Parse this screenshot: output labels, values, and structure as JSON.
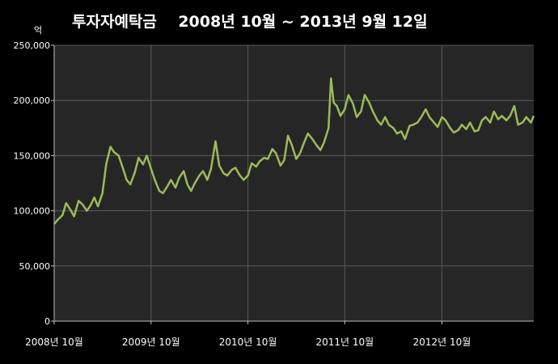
{
  "colors": {
    "background": "#000000",
    "plot_area": "#262626",
    "gridline": "#5a5a5a",
    "axis": "#bfbfbf",
    "line": "#9bbb59",
    "text": "#ffffff"
  },
  "chart_data": {
    "type": "line",
    "title": "투자자예탁금    2008년 10월 ~ 2013년 9월 12일",
    "unit_label": "억",
    "xlabel": "",
    "ylabel": "",
    "ylim": [
      0,
      250000
    ],
    "y_ticks": [
      0,
      50000,
      100000,
      150000,
      200000,
      250000
    ],
    "y_tick_labels": [
      "0",
      "50,000",
      "100,000",
      "150,000",
      "200,000",
      "250,000"
    ],
    "x_range": [
      "2008-10-01",
      "2013-09-12"
    ],
    "x_ticks": [
      "2008-10-01",
      "2009-10-01",
      "2010-10-01",
      "2011-10-01",
      "2012-10-01"
    ],
    "x_tick_labels": [
      "2008년 10월",
      "2009년 10월",
      "2010년 10월",
      "2011년 10월",
      "2012년 10월"
    ],
    "grid": true,
    "legend": "none",
    "series": [
      {
        "x": [
          "2008-10-01",
          "2008-10-15",
          "2008-11-01",
          "2008-11-15",
          "2008-12-01",
          "2008-12-15",
          "2009-01-01",
          "2009-01-15",
          "2009-02-01",
          "2009-02-15",
          "2009-03-01",
          "2009-03-15",
          "2009-04-01",
          "2009-04-15",
          "2009-05-01",
          "2009-05-15",
          "2009-06-01",
          "2009-06-15",
          "2009-07-01",
          "2009-07-15",
          "2009-08-01",
          "2009-08-15",
          "2009-09-01",
          "2009-09-15",
          "2009-10-01",
          "2009-10-15",
          "2009-11-01",
          "2009-11-15",
          "2009-12-01",
          "2009-12-15",
          "2010-01-01",
          "2010-01-15",
          "2010-02-01",
          "2010-02-15",
          "2010-03-01",
          "2010-03-15",
          "2010-04-01",
          "2010-04-15",
          "2010-05-01",
          "2010-05-15",
          "2010-06-01",
          "2010-06-15",
          "2010-07-01",
          "2010-07-15",
          "2010-08-01",
          "2010-08-15",
          "2010-09-01",
          "2010-09-15",
          "2010-10-01",
          "2010-10-15",
          "2010-11-01",
          "2010-11-15",
          "2010-12-01",
          "2010-12-15",
          "2011-01-01",
          "2011-01-15",
          "2011-02-01",
          "2011-02-15",
          "2011-03-01",
          "2011-03-15",
          "2011-04-01",
          "2011-04-15",
          "2011-05-01",
          "2011-05-15",
          "2011-06-01",
          "2011-06-15",
          "2011-07-01",
          "2011-07-15",
          "2011-08-01",
          "2011-08-10",
          "2011-08-20",
          "2011-09-01",
          "2011-09-15",
          "2011-10-01",
          "2011-10-15",
          "2011-11-01",
          "2011-11-15",
          "2011-12-01",
          "2011-12-15",
          "2012-01-01",
          "2012-01-15",
          "2012-02-01",
          "2012-02-15",
          "2012-03-01",
          "2012-03-15",
          "2012-04-01",
          "2012-04-15",
          "2012-05-01",
          "2012-05-15",
          "2012-06-01",
          "2012-06-15",
          "2012-07-01",
          "2012-07-15",
          "2012-08-01",
          "2012-08-15",
          "2012-09-01",
          "2012-09-15",
          "2012-10-01",
          "2012-10-15",
          "2012-11-01",
          "2012-11-15",
          "2012-12-01",
          "2012-12-15",
          "2013-01-01",
          "2013-01-15",
          "2013-02-01",
          "2013-02-15",
          "2013-03-01",
          "2013-03-15",
          "2013-04-01",
          "2013-04-15",
          "2013-05-01",
          "2013-05-15",
          "2013-06-01",
          "2013-06-15",
          "2013-07-01",
          "2013-07-15",
          "2013-08-01",
          "2013-08-15",
          "2013-09-01",
          "2013-09-12"
        ],
        "values": [
          88000,
          92000,
          96000,
          107000,
          101000,
          95000,
          109000,
          106000,
          100000,
          105000,
          112000,
          104000,
          116000,
          142000,
          158000,
          153000,
          150000,
          140000,
          128000,
          124000,
          135000,
          148000,
          142000,
          150000,
          138000,
          128000,
          118000,
          116000,
          122000,
          128000,
          121000,
          130000,
          136000,
          124000,
          118000,
          125000,
          132000,
          136000,
          128000,
          138000,
          163000,
          141000,
          134000,
          132000,
          137000,
          139000,
          132000,
          128000,
          132000,
          143000,
          140000,
          145000,
          148000,
          147000,
          156000,
          152000,
          141000,
          146000,
          168000,
          160000,
          147000,
          152000,
          162000,
          170000,
          165000,
          160000,
          155000,
          162000,
          175000,
          220000,
          198000,
          195000,
          186000,
          192000,
          205000,
          197000,
          185000,
          190000,
          205000,
          198000,
          190000,
          182000,
          178000,
          185000,
          178000,
          175000,
          170000,
          172000,
          165000,
          177000,
          178000,
          180000,
          185000,
          192000,
          185000,
          180000,
          176000,
          185000,
          182000,
          175000,
          171000,
          173000,
          178000,
          174000,
          180000,
          172000,
          173000,
          182000,
          185000,
          180000,
          190000,
          183000,
          186000,
          182000,
          186000,
          195000,
          178000,
          180000,
          185000,
          180000,
          186000
        ]
      }
    ]
  }
}
